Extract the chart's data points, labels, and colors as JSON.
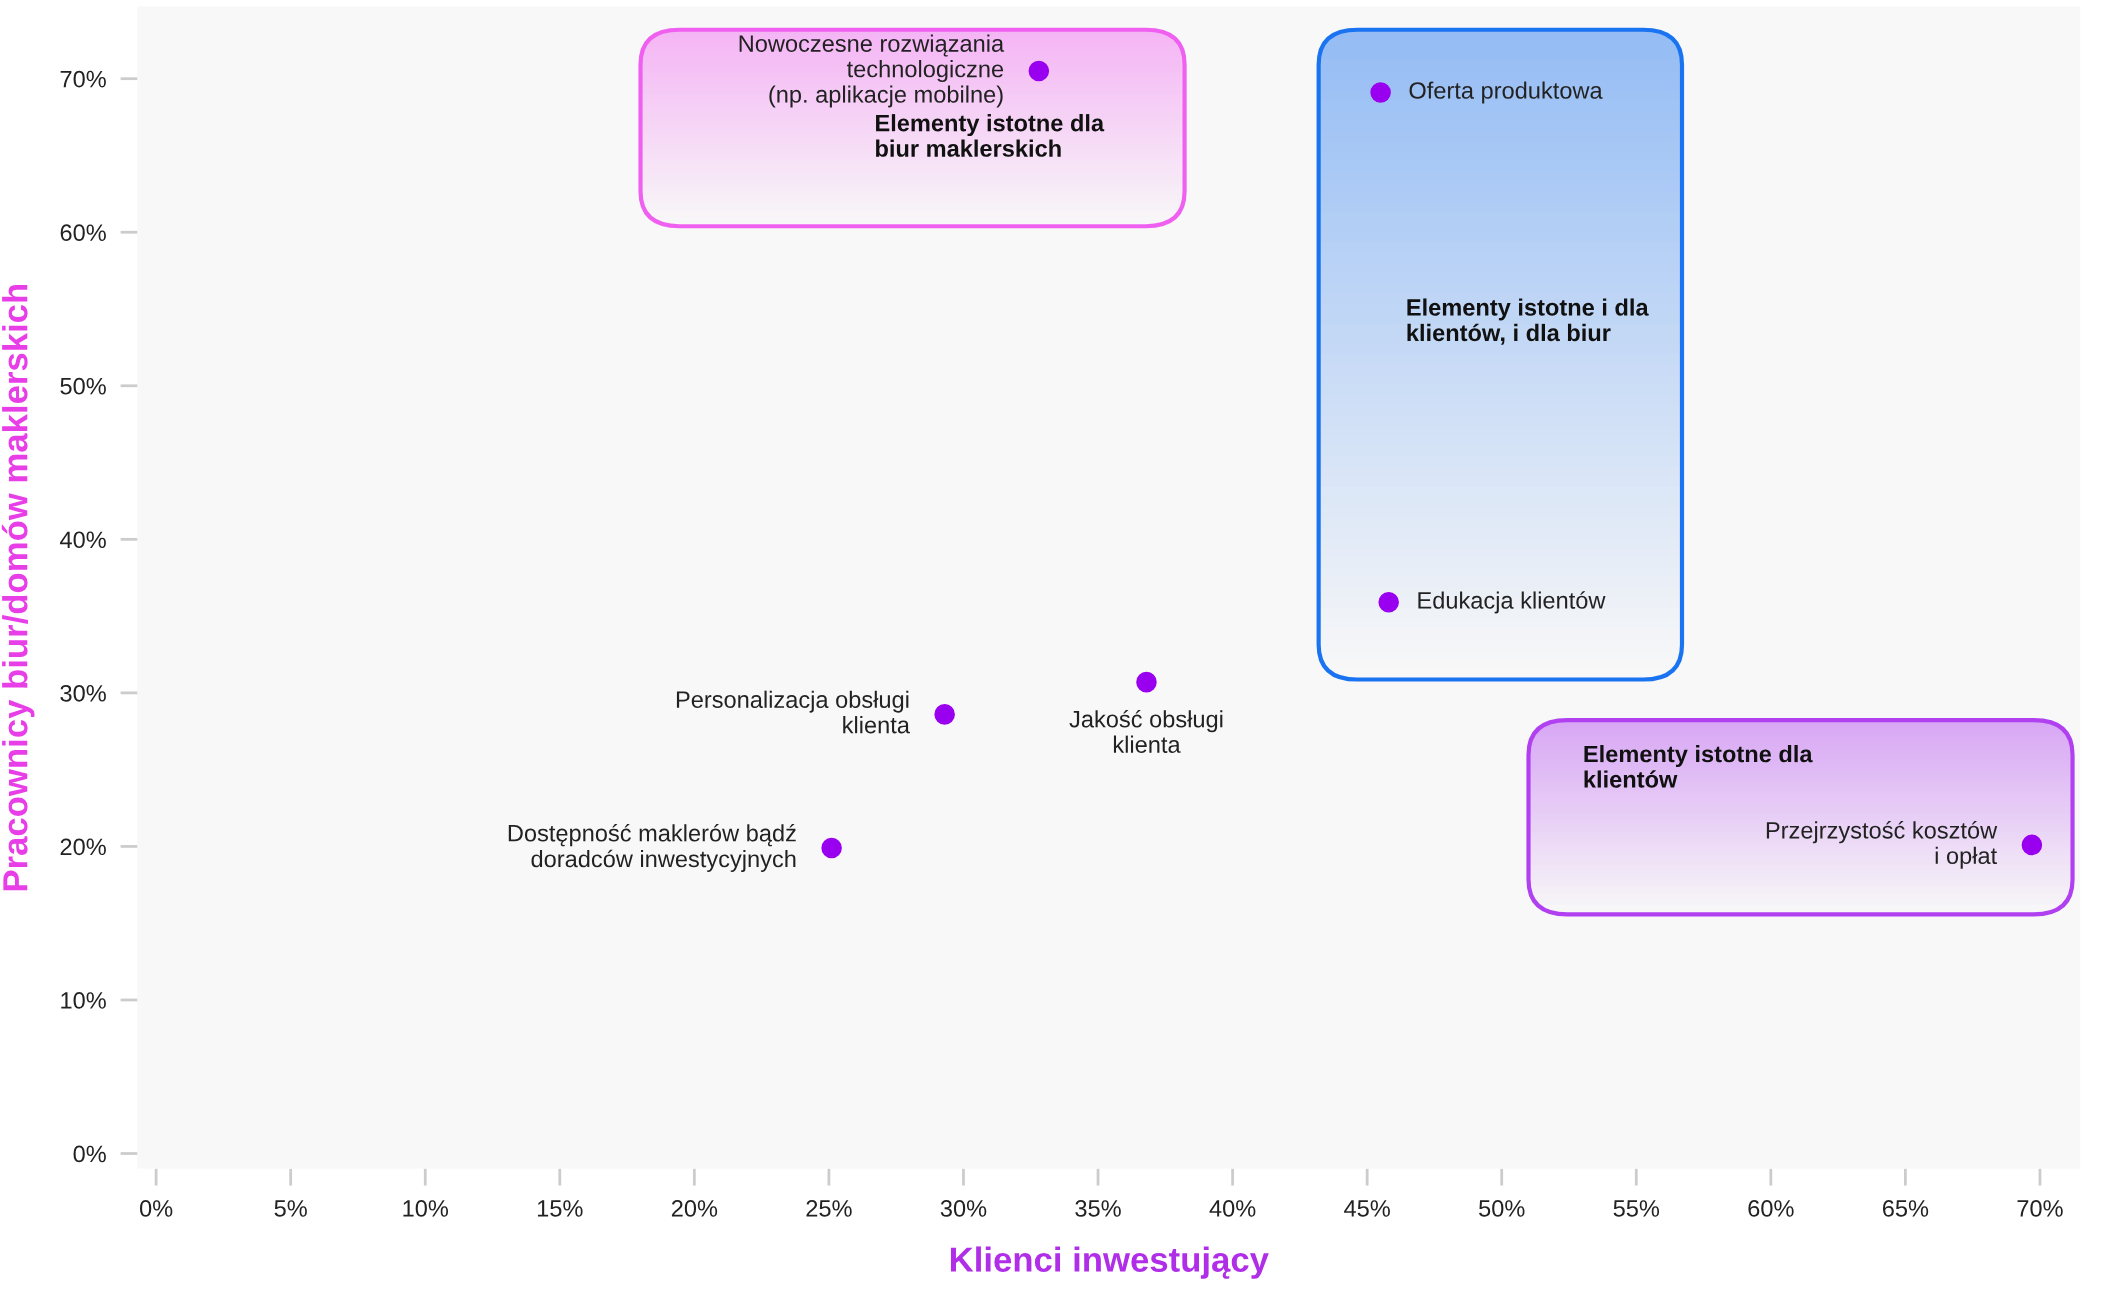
{
  "chart_data": {
    "type": "scatter",
    "xlabel": "Klienci inwestujący",
    "ylabel": "Pracownicy biur/domów maklerskich",
    "x": [
      32.8,
      45.5,
      45.8,
      36.8,
      29.3,
      25.1,
      69.7
    ],
    "series": [
      {
        "color": "#9a00f0",
        "values": [
          70.5,
          69.1,
          35.9,
          30.7,
          28.6,
          19.9,
          20.1
        ]
      }
    ],
    "annotations": [
      {
        "text": "Nowoczesne rozwiązania\ntechnologiczne\n(np. aplikacje mobilne)",
        "x": 32.8,
        "y": 70.5
      },
      {
        "text": "Oferta produktowa",
        "x": 45.5,
        "y": 69.1
      },
      {
        "text": "Edukacja klientów",
        "x": 45.8,
        "y": 35.9
      },
      {
        "text": "Jakość obsługi\nklienta",
        "x": 36.8,
        "y": 30.7
      },
      {
        "text": "Personalizacja obsługi\nklienta",
        "x": 29.3,
        "y": 28.6
      },
      {
        "text": "Dostępność maklerów bądź\ndoradców inwestycyjnych",
        "x": 25.1,
        "y": 19.9
      },
      {
        "text": "Przejrzystość kosztów\ni opłat",
        "x": 69.7,
        "y": 20.1
      },
      "Elementy istotne dla\nbiur maklerskich",
      "Elementy istotne i dla\nklientów, i dla biur",
      "Elementy istotne dla\nklientów"
    ],
    "xlim": [
      -0.7,
      71.5
    ],
    "ylim": [
      -1,
      74.7
    ],
    "xticks": [
      {
        "value": 0,
        "label": "0%"
      },
      {
        "value": 5,
        "label": "5%"
      },
      {
        "value": 10,
        "label": "10%"
      },
      {
        "value": 15,
        "label": "15%"
      },
      {
        "value": 20,
        "label": "20%"
      },
      {
        "value": 25,
        "label": "25%"
      },
      {
        "value": 30,
        "label": "30%"
      },
      {
        "value": 35,
        "label": "35%"
      },
      {
        "value": 40,
        "label": "40%"
      },
      {
        "value": 45,
        "label": "45%"
      },
      {
        "value": 50,
        "label": "50%"
      },
      {
        "value": 55,
        "label": "55%"
      },
      {
        "value": 60,
        "label": "60%"
      },
      {
        "value": 65,
        "label": "65%"
      },
      {
        "value": 70,
        "label": "70%"
      }
    ],
    "yticks": [
      {
        "value": 0,
        "label": "0%"
      },
      {
        "value": 10,
        "label": "10%"
      },
      {
        "value": 20,
        "label": "20%"
      },
      {
        "value": 30,
        "label": "30%"
      },
      {
        "value": 40,
        "label": "40%"
      },
      {
        "value": 50,
        "label": "50%"
      },
      {
        "value": 60,
        "label": "60%"
      },
      {
        "value": 70,
        "label": "70%"
      }
    ],
    "grid": false,
    "marker": "circle"
  }
}
